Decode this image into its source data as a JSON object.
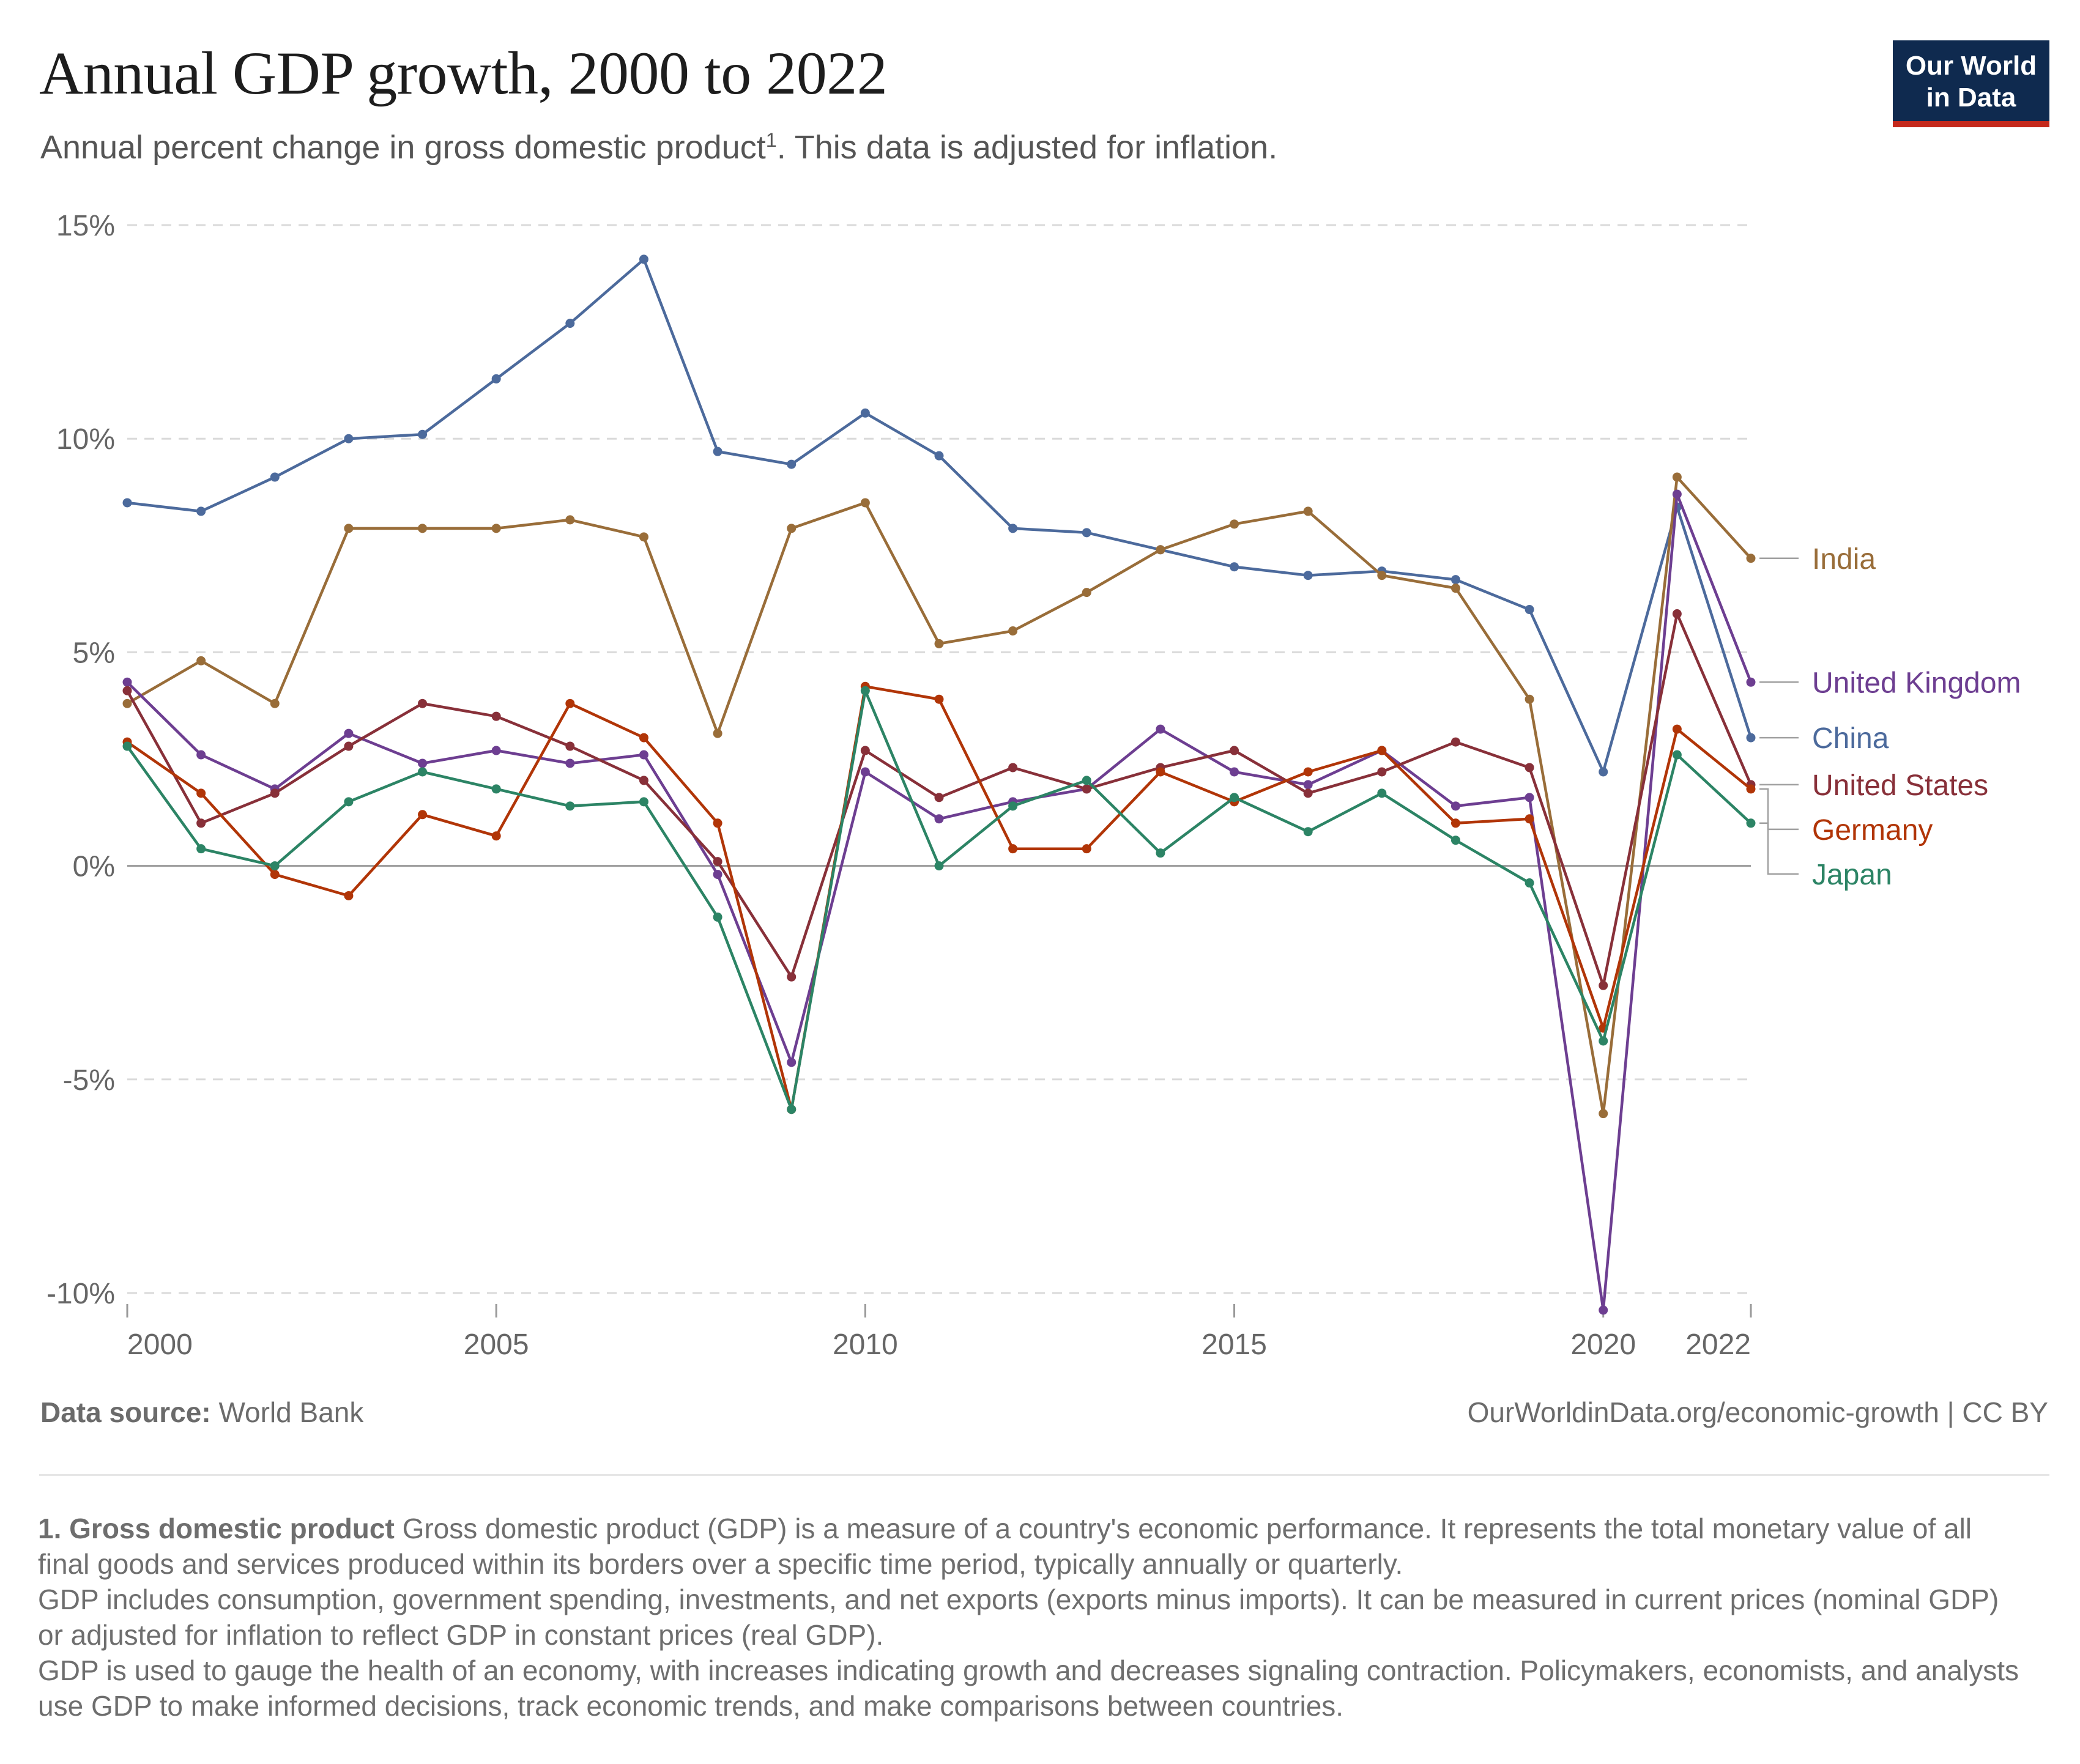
{
  "header": {
    "title": "Annual GDP growth, 2000 to 2022",
    "subtitle": "Annual percent change in gross domestic product",
    "subtitle_sup": "1",
    "subtitle_tail": ". This data is adjusted for inflation.",
    "logo_line1": "Our World",
    "logo_line2": "in Data"
  },
  "footer": {
    "source_label": "Data source:",
    "source_value": "World Bank",
    "site": "OurWorldinData.org/economic-growth | CC BY"
  },
  "notes": {
    "title": "1. Gross domestic product",
    "text1": "Gross domestic product (GDP) is a measure of a country's economic performance. It represents the total monetary value of all final goods and services produced within its borders over a specific time period, typically annually or quarterly.",
    "text2": "GDP includes consumption, government spending, investments, and net exports (exports minus imports). It can be measured in current prices (nominal GDP) or adjusted for inflation to reflect GDP in constant prices (real GDP).",
    "text3": "GDP is used to gauge the health of an economy, with increases indicating growth and decreases signaling contraction. Policymakers, economists, and analysts use GDP to make informed decisions, track economic trends, and make comparisons between countries."
  },
  "chart_data": {
    "type": "line",
    "title": "Annual GDP growth, 2000 to 2022",
    "xlabel": "",
    "ylabel": "",
    "x": [
      2000,
      2001,
      2002,
      2003,
      2004,
      2005,
      2006,
      2007,
      2008,
      2009,
      2010,
      2011,
      2012,
      2013,
      2014,
      2015,
      2016,
      2017,
      2018,
      2019,
      2020,
      2021,
      2022
    ],
    "xlim": [
      2000,
      2022
    ],
    "ylim": [
      -10,
      15
    ],
    "y_ticks": [
      -10,
      -5,
      0,
      5,
      10,
      15
    ],
    "y_tick_labels": [
      "-10%",
      "-5%",
      "0%",
      "5%",
      "10%",
      "15%"
    ],
    "x_ticks": [
      2000,
      2005,
      2010,
      2015,
      2020,
      2022
    ],
    "x_tick_labels": [
      "2000",
      "2005",
      "2010",
      "2015",
      "2020",
      "2022"
    ],
    "grid": true,
    "series": [
      {
        "name": "China",
        "color": "#4c6a9c",
        "values": [
          8.5,
          8.3,
          9.1,
          10.0,
          10.1,
          11.4,
          12.7,
          14.2,
          9.7,
          9.4,
          10.6,
          9.6,
          7.9,
          7.8,
          7.4,
          7.0,
          6.8,
          6.9,
          6.7,
          6.0,
          2.2,
          8.4,
          3.0
        ]
      },
      {
        "name": "India",
        "color": "#996d39",
        "values": [
          3.8,
          4.8,
          3.8,
          7.9,
          7.9,
          7.9,
          8.1,
          7.7,
          3.1,
          7.9,
          8.5,
          5.2,
          5.5,
          6.4,
          7.4,
          8.0,
          8.3,
          6.8,
          6.5,
          3.9,
          -5.8,
          9.1,
          7.2
        ]
      },
      {
        "name": "United Kingdom",
        "color": "#6d3e91",
        "values": [
          4.3,
          2.6,
          1.8,
          3.1,
          2.4,
          2.7,
          2.4,
          2.6,
          -0.2,
          -4.6,
          2.2,
          1.1,
          1.5,
          1.8,
          3.2,
          2.2,
          1.9,
          2.7,
          1.4,
          1.6,
          -10.4,
          8.7,
          4.3
        ]
      },
      {
        "name": "United States",
        "color": "#883039",
        "values": [
          4.1,
          1.0,
          1.7,
          2.8,
          3.8,
          3.5,
          2.8,
          2.0,
          0.1,
          -2.6,
          2.7,
          1.6,
          2.3,
          1.8,
          2.3,
          2.7,
          1.7,
          2.2,
          2.9,
          2.3,
          -2.8,
          5.9,
          1.9
        ]
      },
      {
        "name": "Germany",
        "color": "#b13507",
        "values": [
          2.9,
          1.7,
          -0.2,
          -0.7,
          1.2,
          0.7,
          3.8,
          3.0,
          1.0,
          -5.7,
          4.2,
          3.9,
          0.4,
          0.4,
          2.2,
          1.5,
          2.2,
          2.7,
          1.0,
          1.1,
          -3.8,
          3.2,
          1.8
        ]
      },
      {
        "name": "Japan",
        "color": "#2c8465",
        "values": [
          2.8,
          0.4,
          0.0,
          1.5,
          2.2,
          1.8,
          1.4,
          1.5,
          -1.2,
          -5.7,
          4.1,
          0.0,
          1.4,
          2.0,
          0.3,
          1.6,
          0.8,
          1.7,
          0.6,
          -0.4,
          -4.1,
          2.6,
          1.0
        ]
      }
    ],
    "legend_placement": "right, labels at line ends"
  }
}
